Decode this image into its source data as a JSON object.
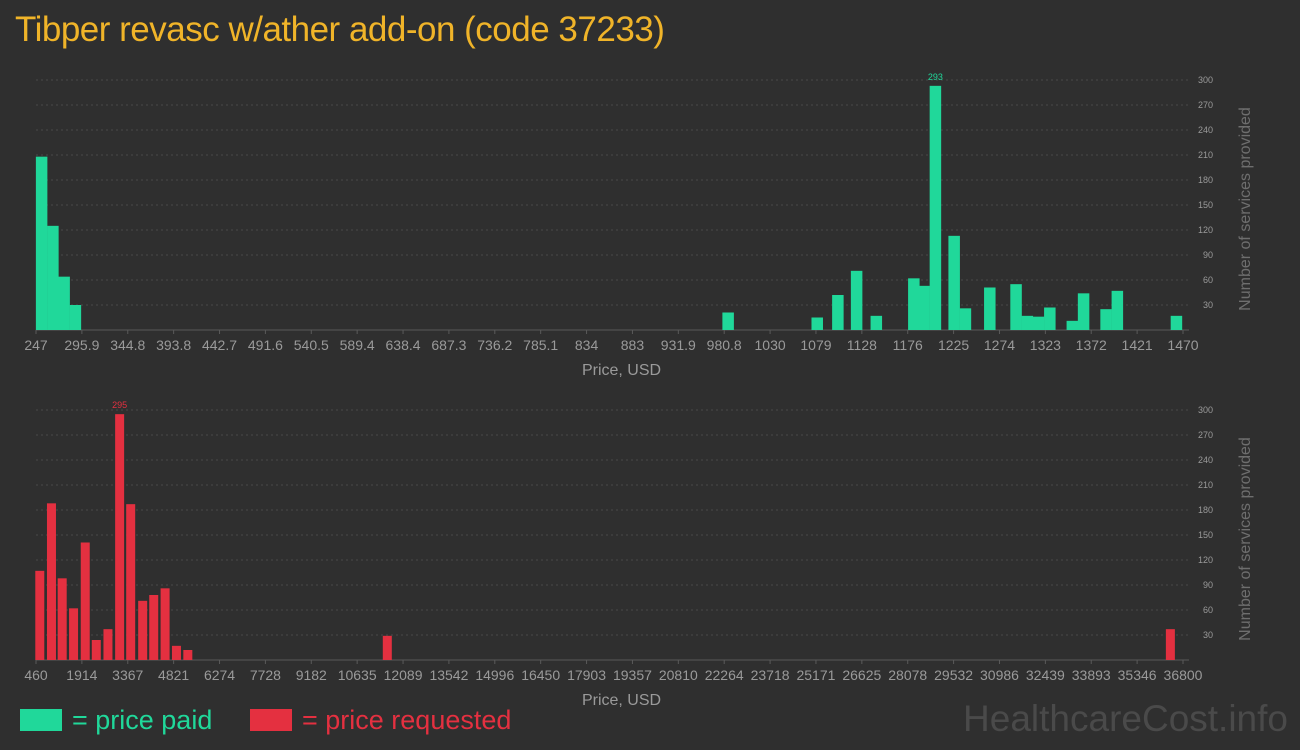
{
  "title": "Tibper revasc w/ather add-on (code 37233)",
  "colors": {
    "paid": "#20d89a",
    "requested": "#e43040",
    "title": "#f0b429",
    "axis_text": "#9a9a9a",
    "grid": "#4a4a4a"
  },
  "legend": {
    "paid_label": "= price paid",
    "requested_label": "= price requested"
  },
  "watermark": "HealthcareCost.info",
  "chart_data": [
    {
      "type": "bar",
      "name": "price paid",
      "xlabel": "Price, USD",
      "ylabel": "Number of services provided",
      "ylim": [
        0,
        300
      ],
      "yticks": [
        30,
        60,
        90,
        120,
        150,
        180,
        210,
        240,
        270,
        300
      ],
      "xlim": [
        247,
        1470
      ],
      "xtick_labels": [
        "247",
        "295.9",
        "344.8",
        "393.8",
        "442.7",
        "491.6",
        "540.5",
        "589.4",
        "638.4",
        "687.3",
        "736.2",
        "785.1",
        "834",
        "883",
        "931.9",
        "980.8",
        "1030",
        "1079",
        "1128",
        "1176",
        "1225",
        "1274",
        "1323",
        "1372",
        "1421",
        "1470"
      ],
      "bar_width": 11.5,
      "peak_label": "293",
      "bars": [
        {
          "x": 253,
          "y": 208
        },
        {
          "x": 265,
          "y": 125
        },
        {
          "x": 277,
          "y": 64
        },
        {
          "x": 289,
          "y": 30
        },
        {
          "x": 985,
          "y": 21
        },
        {
          "x": 1080,
          "y": 15
        },
        {
          "x": 1102,
          "y": 42
        },
        {
          "x": 1122,
          "y": 71
        },
        {
          "x": 1143,
          "y": 17
        },
        {
          "x": 1183,
          "y": 62
        },
        {
          "x": 1194,
          "y": 53
        },
        {
          "x": 1206,
          "y": 293
        },
        {
          "x": 1226,
          "y": 113
        },
        {
          "x": 1238,
          "y": 26
        },
        {
          "x": 1264,
          "y": 51
        },
        {
          "x": 1292,
          "y": 55
        },
        {
          "x": 1304,
          "y": 17
        },
        {
          "x": 1316,
          "y": 16
        },
        {
          "x": 1328,
          "y": 27
        },
        {
          "x": 1352,
          "y": 11
        },
        {
          "x": 1364,
          "y": 44
        },
        {
          "x": 1388,
          "y": 25
        },
        {
          "x": 1400,
          "y": 47
        },
        {
          "x": 1463,
          "y": 17
        }
      ]
    },
    {
      "type": "bar",
      "name": "price requested",
      "xlabel": "Price, USD",
      "ylabel": "Number of services provided",
      "ylim": [
        0,
        300
      ],
      "yticks": [
        30,
        60,
        90,
        120,
        150,
        180,
        210,
        240,
        270,
        300
      ],
      "xlim": [
        460,
        36800
      ],
      "xtick_labels": [
        "460",
        "1914",
        "3367",
        "4821",
        "6274",
        "7728",
        "9182",
        "10635",
        "12089",
        "13542",
        "14996",
        "16450",
        "17903",
        "19357",
        "20810",
        "22264",
        "23718",
        "25171",
        "26625",
        "28078",
        "29532",
        "30986",
        "32439",
        "33893",
        "35346",
        "36800"
      ],
      "bar_width": 9,
      "peak_label": "295",
      "bars": [
        {
          "x": 580,
          "y": 107
        },
        {
          "x": 950,
          "y": 188
        },
        {
          "x": 1290,
          "y": 98
        },
        {
          "x": 1650,
          "y": 62
        },
        {
          "x": 2020,
          "y": 141
        },
        {
          "x": 2370,
          "y": 24
        },
        {
          "x": 2740,
          "y": 37
        },
        {
          "x": 3110,
          "y": 295
        },
        {
          "x": 3460,
          "y": 187
        },
        {
          "x": 3840,
          "y": 71
        },
        {
          "x": 4190,
          "y": 78
        },
        {
          "x": 4550,
          "y": 86
        },
        {
          "x": 4910,
          "y": 17
        },
        {
          "x": 5270,
          "y": 12
        },
        {
          "x": 11590,
          "y": 29
        },
        {
          "x": 36400,
          "y": 37
        }
      ]
    }
  ]
}
